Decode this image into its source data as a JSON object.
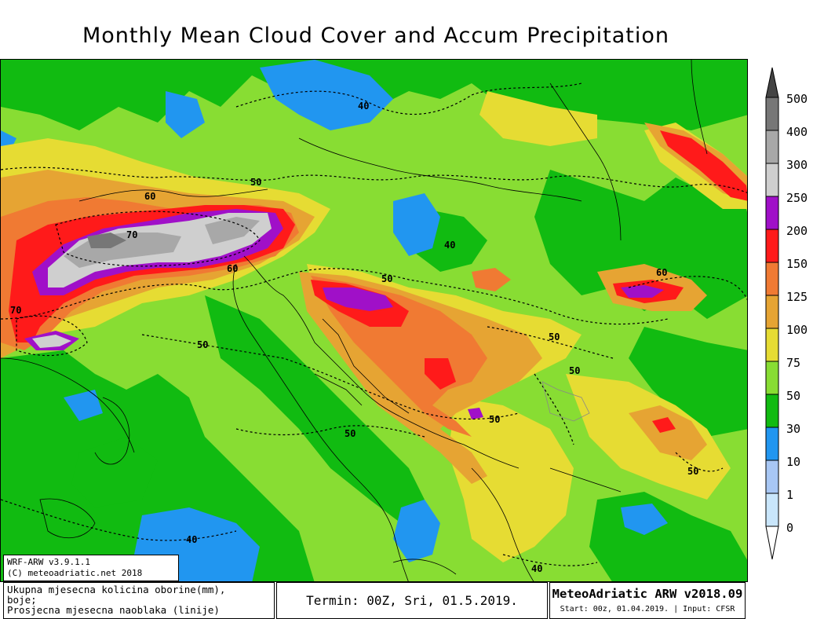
{
  "title": "Monthly Mean Cloud Cover and Accum Precipitation",
  "colors": {
    "c0": "#ffffff",
    "c1": "#c9e6fb",
    "c10": "#a8c7f4",
    "c30": "#2196f0",
    "c50": "#11bb11",
    "c75": "#88dd33",
    "c100": "#e6dc33",
    "c125": "#e6a433",
    "c150": "#f07a33",
    "c200": "#ff1a1a",
    "c250": "#a010c8",
    "c300": "#cfcfcf",
    "c400": "#a8a8a8",
    "c500": "#777777",
    "c500plus": "#444444",
    "cloud_contour": "#000000",
    "coastline": "#000000"
  },
  "legend": {
    "labels": [
      "500",
      "400",
      "300",
      "250",
      "200",
      "150",
      "125",
      "100",
      "75",
      "50",
      "30",
      "10",
      "1",
      "0"
    ]
  },
  "cloud_contour_labels": [
    {
      "text": "40"
    },
    {
      "text": "50"
    },
    {
      "text": "60"
    },
    {
      "text": "70"
    },
    {
      "text": "60"
    },
    {
      "text": "70"
    },
    {
      "text": "50"
    },
    {
      "text": "50"
    },
    {
      "text": "40"
    },
    {
      "text": "50"
    },
    {
      "text": "50"
    },
    {
      "text": "50"
    },
    {
      "text": "50"
    },
    {
      "text": "60"
    },
    {
      "text": "50"
    },
    {
      "text": "40"
    },
    {
      "text": "40"
    }
  ],
  "credit": {
    "line1": "WRF-ARW v3.9.1.1",
    "line2": "(C) meteoadriatic.net 2018"
  },
  "footer": {
    "desc1": "Ukupna mjesecna kolicina oborine(mm),",
    "desc2": "boje;",
    "desc3": "Prosjecna mjesecna naoblaka (linije)",
    "term": "Termin: 00Z, Sri, 01.5.2019.",
    "model": "MeteoAdriatic ARW v2018.09",
    "start": "Start: 00z, 01.04.2019. | Input: CFSR"
  }
}
